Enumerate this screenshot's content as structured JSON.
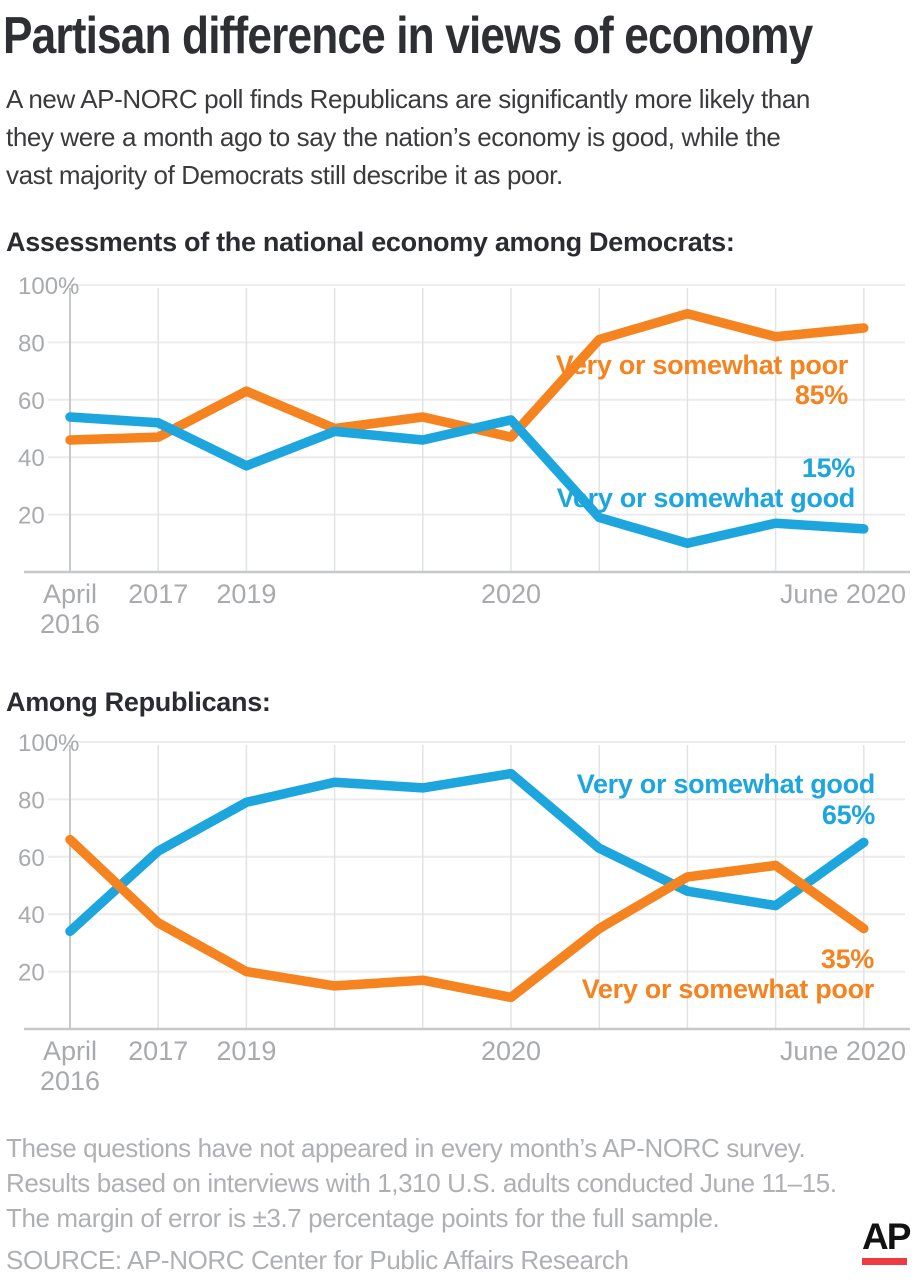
{
  "title": "Partisan difference in views of economy",
  "subtitle_lines": [
    "A new AP-NORC poll finds Republicans are significantly more likely than",
    "they were a month ago to say the nation’s economy is good, while the",
    "vast majority of Democrats still describe it as poor."
  ],
  "colors": {
    "good_blue": "#1CA6DD",
    "poor_orange": "#F5831F",
    "title_dark": "#2E2F33",
    "axis_text_gray": "#A8AAAD",
    "footnote_gray": "#AEB0B3",
    "grid_horizontal": "#ECECEC",
    "grid_vertical": "#E2E3E5",
    "axis_line": "#C6C8CA",
    "ap_red": "#EE3A43",
    "logo_black": "#121212"
  },
  "chart_data": [
    {
      "type": "line",
      "title": "Assessments of the national economy among Democrats:",
      "xlabel": "",
      "ylabel": "",
      "ylim": [
        0,
        100
      ],
      "yticks": [
        20,
        40,
        60,
        80,
        100
      ],
      "ytick_labels": [
        "20",
        "40",
        "60",
        "80",
        "100%"
      ],
      "grid": true,
      "legend_position": "inline-right",
      "categories": [
        "April 2016",
        "2017",
        "2019",
        "",
        "",
        "2020",
        "",
        "",
        "",
        "June 2020"
      ],
      "x_ticks": [
        {
          "index": 0,
          "lines": [
            "April",
            "2016"
          ]
        },
        {
          "index": 1,
          "lines": [
            "2017"
          ]
        },
        {
          "index": 2,
          "lines": [
            "2019"
          ]
        },
        {
          "index": 5,
          "lines": [
            "2020"
          ]
        },
        {
          "index": 9,
          "lines": [
            "June 2020"
          ],
          "align": "right"
        }
      ],
      "series": [
        {
          "key": "poor",
          "name": "Very or somewhat poor",
          "color": "#F5831F",
          "values": [
            46,
            47,
            63,
            50,
            54,
            47,
            81,
            90,
            82,
            85
          ]
        },
        {
          "key": "good",
          "name": "Very or somewhat good",
          "color": "#1CA6DD",
          "values": [
            54,
            52,
            37,
            49,
            46,
            53,
            19,
            10,
            17,
            15
          ]
        }
      ],
      "annotations": {
        "poor_label": "Very or somewhat poor",
        "poor_value": "85%",
        "good_value": "15%",
        "good_label": "Very or somewhat good"
      }
    },
    {
      "type": "line",
      "title": "Among Republicans:",
      "xlabel": "",
      "ylabel": "",
      "ylim": [
        0,
        100
      ],
      "yticks": [
        20,
        40,
        60,
        80,
        100
      ],
      "ytick_labels": [
        "20",
        "40",
        "60",
        "80",
        "100%"
      ],
      "grid": true,
      "legend_position": "inline-right",
      "categories": [
        "April 2016",
        "2017",
        "2019",
        "",
        "",
        "2020",
        "",
        "",
        "",
        "June 2020"
      ],
      "x_ticks": [
        {
          "index": 0,
          "lines": [
            "April",
            "2016"
          ]
        },
        {
          "index": 1,
          "lines": [
            "2017"
          ]
        },
        {
          "index": 2,
          "lines": [
            "2019"
          ]
        },
        {
          "index": 5,
          "lines": [
            "2020"
          ]
        },
        {
          "index": 9,
          "lines": [
            "June 2020"
          ],
          "align": "right"
        }
      ],
      "series": [
        {
          "key": "good",
          "name": "Very or somewhat good",
          "color": "#1CA6DD",
          "values": [
            34,
            62,
            79,
            86,
            84,
            89,
            63,
            48,
            43,
            65
          ]
        },
        {
          "key": "poor",
          "name": "Very or somewhat poor",
          "color": "#F5831F",
          "values": [
            66,
            37,
            20,
            15,
            17,
            11,
            35,
            53,
            57,
            35
          ]
        }
      ],
      "annotations": {
        "good_label": "Very or somewhat good",
        "good_value": "65%",
        "poor_value": "35%",
        "poor_label": "Very or somewhat poor"
      }
    }
  ],
  "footnote_lines": [
    "These questions have not appeared in every month’s AP-NORC survey.",
    "Results based on interviews with 1,310 U.S. adults conducted June 11–15.",
    "The margin of error is ±3.7 percentage points for the full sample."
  ],
  "source": "SOURCE: AP-NORC Center for Public Affairs Research",
  "logo": {
    "text": "AP"
  }
}
